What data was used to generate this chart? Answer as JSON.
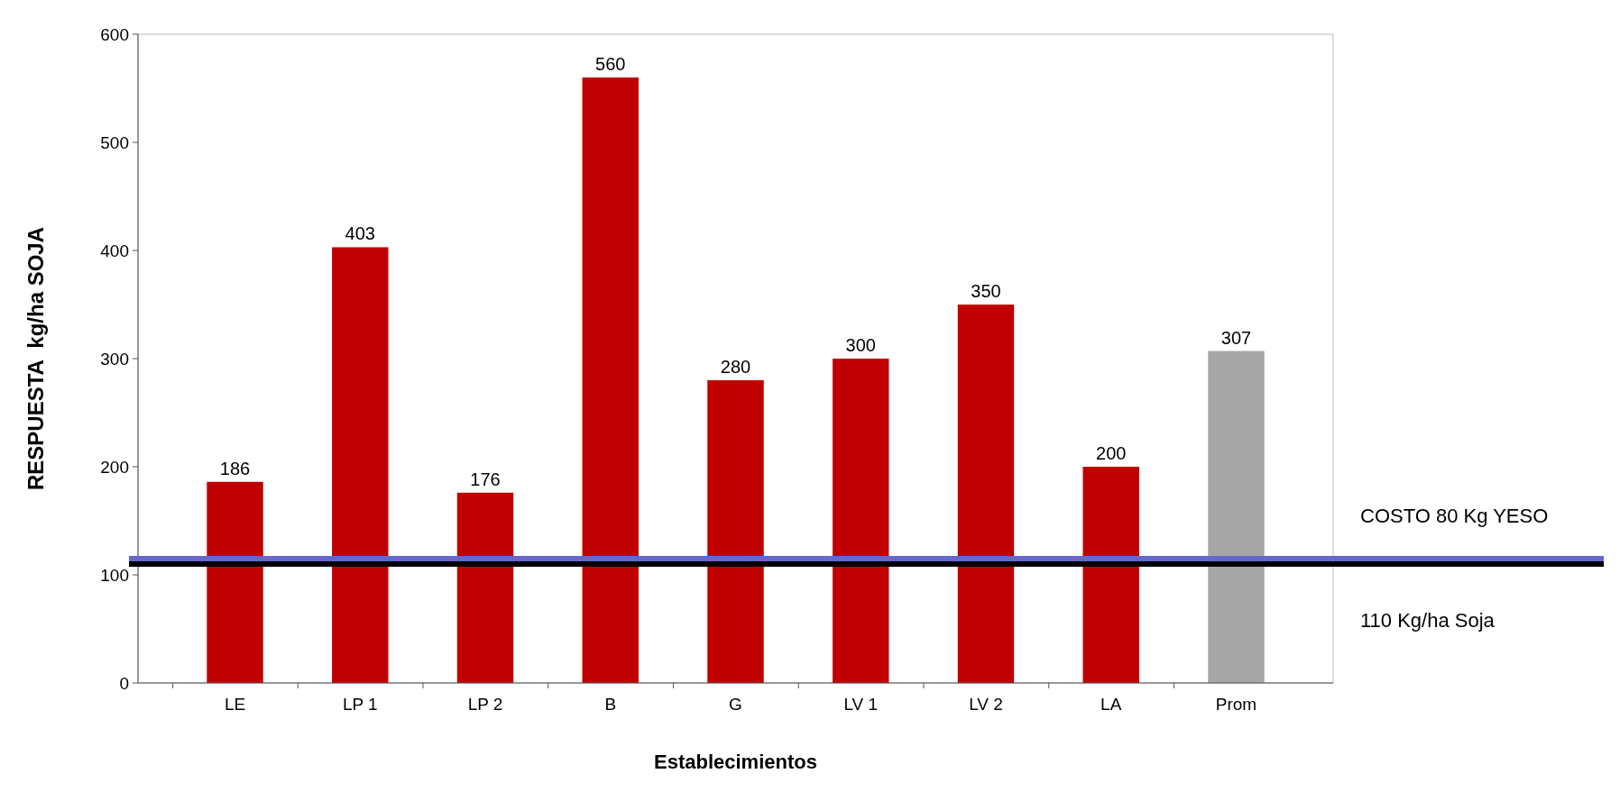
{
  "chart_data": {
    "type": "bar",
    "xlabel": "Establecimientos",
    "ylabel": "RESPUESTA  kg/ha SOJA",
    "categories": [
      "LE",
      "LP 1",
      "LP 2",
      "B",
      "G",
      "LV  1",
      "LV 2",
      "LA",
      "Prom"
    ],
    "values": [
      186,
      403,
      176,
      560,
      280,
      300,
      350,
      200,
      307
    ],
    "colors": [
      "#c00000",
      "#c00000",
      "#c00000",
      "#c00000",
      "#c00000",
      "#c00000",
      "#c00000",
      "#c00000",
      "#a6a6a6"
    ],
    "ylim": [
      0,
      600
    ],
    "yticks": [
      0,
      100,
      200,
      300,
      400,
      500,
      600
    ],
    "data_labels": true,
    "grid": false,
    "ref_lines": [
      {
        "axis": "y",
        "value": 115,
        "label": "COSTO 80 Kg YESO",
        "color": "#6666cc"
      },
      {
        "axis": "y",
        "value": 110,
        "label": "110 Kg/ha Soja",
        "color": "#000000"
      }
    ]
  }
}
